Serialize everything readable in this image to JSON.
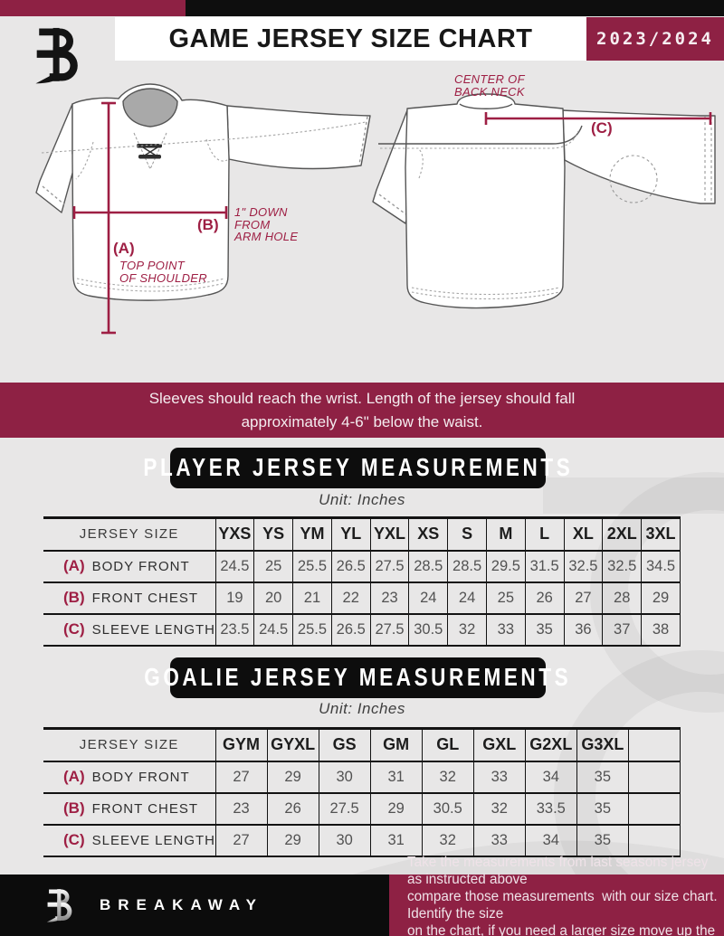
{
  "header": {
    "title": "GAME JERSEY SIZE CHART",
    "season": "2023/2024"
  },
  "diagram": {
    "front": {
      "label_a": "(A)",
      "label_b": "(B)",
      "note_a_lines": [
        "TOP POINT",
        "OF SHOULDER"
      ],
      "note_b_lines": [
        "1\" DOWN",
        "FROM",
        "ARM HOLE"
      ]
    },
    "back": {
      "label_c": "(C)",
      "note_c_lines": [
        "CENTER OF",
        "BACK NECK"
      ]
    }
  },
  "fit_note_lines": [
    "Sleeves should reach the wrist. Length of the jersey should fall",
    "approximately 4-6\" below the waist."
  ],
  "player_section": {
    "title": "PLAYER JERSEY MEASUREMENTS",
    "unit": "Unit: Inches",
    "table": {
      "corner_label": "JERSEY SIZE",
      "columns": [
        "YXS",
        "YS",
        "YM",
        "YL",
        "YXL",
        "XS",
        "S",
        "M",
        "L",
        "XL",
        "2XL",
        "3XL"
      ],
      "rows": [
        {
          "prefix": "(A)",
          "label": "BODY FRONT",
          "values": [
            "24.5",
            "25",
            "25.5",
            "26.5",
            "27.5",
            "28.5",
            "28.5",
            "29.5",
            "31.5",
            "32.5",
            "32.5",
            "34.5"
          ]
        },
        {
          "prefix": "(B)",
          "label": "FRONT CHEST",
          "values": [
            "19",
            "20",
            "21",
            "22",
            "23",
            "24",
            "24",
            "25",
            "26",
            "27",
            "28",
            "29"
          ]
        },
        {
          "prefix": "(C)",
          "label": "SLEEVE LENGTH",
          "values": [
            "23.5",
            "24.5",
            "25.5",
            "26.5",
            "27.5",
            "30.5",
            "32",
            "33",
            "35",
            "36",
            "37",
            "38"
          ]
        }
      ]
    }
  },
  "goalie_section": {
    "title": "GOALIE JERSEY MEASUREMENTS",
    "unit": "Unit: Inches",
    "table": {
      "corner_label": "JERSEY SIZE",
      "columns": [
        "GYM",
        "GYXL",
        "GS",
        "GM",
        "GL",
        "GXL",
        "G2XL",
        "G3XL",
        ""
      ],
      "rows": [
        {
          "prefix": "(A)",
          "label": "BODY FRONT",
          "values": [
            "27",
            "29",
            "30",
            "31",
            "32",
            "33",
            "34",
            "35",
            ""
          ]
        },
        {
          "prefix": "(B)",
          "label": "FRONT CHEST",
          "values": [
            "23",
            "26",
            "27.5",
            "29",
            "30.5",
            "32",
            "33.5",
            "35",
            ""
          ]
        },
        {
          "prefix": "(C)",
          "label": "SLEEVE LENGTH",
          "values": [
            "27",
            "29",
            "30",
            "31",
            "32",
            "33",
            "34",
            "35",
            ""
          ]
        }
      ]
    }
  },
  "footer": {
    "brand": "BREAKAWAY",
    "note_lines": [
      "Take the measurements from last seasons jersey as instructed above",
      "compare those measurements  with our size chart. Identify the size",
      "on the chart, if you need a larger size move up the scale on the chart"
    ]
  },
  "colors": {
    "maroon": "#8e2144",
    "annotation": "#9e1f44",
    "table_line": "#131313"
  }
}
